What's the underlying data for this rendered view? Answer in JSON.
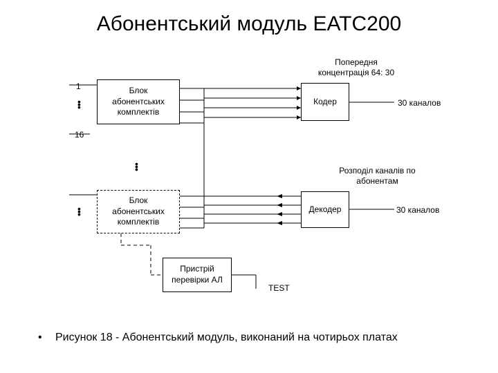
{
  "title": "Абонентський модуль ЕАТС200",
  "annotations": {
    "pre_concentration": "Попередня\nконцентрація 64: 30",
    "channels30_top": "30 каналов",
    "channel_distribution": "Розподіл каналів по\nабонентам",
    "channels30_bottom": "30 каналов"
  },
  "blocks": {
    "subscriber_block": "Блок\nабонентських\nкомплектів",
    "coder": "Кодер",
    "subscriber_block2": "Блок\nабонентських\nкомплектів",
    "decoder": "Декодер",
    "test_device": "Пристрій\nперевірки АЛ",
    "test_label": "TEST"
  },
  "numbers": {
    "one": "1",
    "sixteen": "16"
  },
  "caption": "Рисунок 18 - Абонентський модуль, виконаний на чотирьох платах",
  "style": {
    "title_fontsize": 30,
    "label_fontsize": 12,
    "caption_fontsize": 16,
    "stroke": "#000000",
    "bg": "#ffffff",
    "box_border_width": 1.5
  }
}
